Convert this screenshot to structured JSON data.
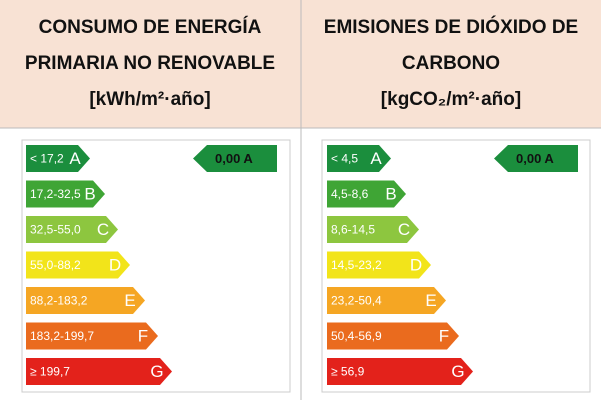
{
  "panels": [
    {
      "title": [
        "CONSUMO DE ENERGÍA",
        "PRIMARIA NO RENOVABLE",
        "[kWh/m²·año]"
      ],
      "indicator": "0,00 A",
      "bars": [
        {
          "range": "< 17,2",
          "letter": "A"
        },
        {
          "range": "17,2-32,5",
          "letter": "B"
        },
        {
          "range": "32,5-55,0",
          "letter": "C"
        },
        {
          "range": "55,0-88,2",
          "letter": "D"
        },
        {
          "range": "88,2-183,2",
          "letter": "E"
        },
        {
          "range": "183,2-199,7",
          "letter": "F"
        },
        {
          "range": "≥ 199,7",
          "letter": "G"
        }
      ]
    },
    {
      "title": [
        "EMISIONES DE DIÓXIDO DE",
        "CARBONO",
        "[kgCO₂/m²·año]"
      ],
      "indicator": "0,00 A",
      "bars": [
        {
          "range": "< 4,5",
          "letter": "A"
        },
        {
          "range": "4,5-8,6",
          "letter": "B"
        },
        {
          "range": "8,6-14,5",
          "letter": "C"
        },
        {
          "range": "14,5-23,2",
          "letter": "D"
        },
        {
          "range": "23,2-50,4",
          "letter": "E"
        },
        {
          "range": "50,4-56,9",
          "letter": "F"
        },
        {
          "range": "≥ 56,9",
          "letter": "G"
        }
      ]
    }
  ]
}
